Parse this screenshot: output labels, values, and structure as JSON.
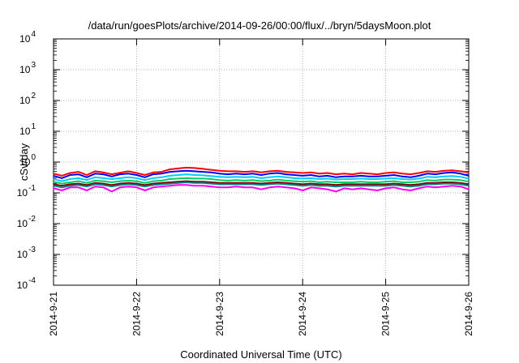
{
  "chart_data": {
    "type": "line",
    "title": "/data/run/goesPlots/archive/2014-09-26/00:00/flux/../bryn/5daysMoon.plot",
    "xlabel": "Coordinated Universal Time (UTC)",
    "ylabel": "cSv/day",
    "y_scale": "log",
    "ylim": [
      0.0001,
      10000
    ],
    "y_ticks": [
      {
        "base": "10",
        "exp": "-4"
      },
      {
        "base": "10",
        "exp": "-3"
      },
      {
        "base": "10",
        "exp": "-2"
      },
      {
        "base": "10",
        "exp": "-1"
      },
      {
        "base": "10",
        "exp": "0"
      },
      {
        "base": "10",
        "exp": "1"
      },
      {
        "base": "10",
        "exp": "2"
      },
      {
        "base": "10",
        "exp": "3"
      },
      {
        "base": "10",
        "exp": "4"
      }
    ],
    "xlim": [
      "2014-09-21",
      "2014-09-26"
    ],
    "x_ticks": [
      "2014-9-21",
      "2014-9-22",
      "2014-9-23",
      "2014-9-24",
      "2014-9-25",
      "2014-9-26"
    ],
    "grid": true,
    "series": [
      {
        "color": "#ff0000",
        "values": [
          0.42,
          0.36,
          0.44,
          0.48,
          0.38,
          0.5,
          0.46,
          0.4,
          0.45,
          0.5,
          0.44,
          0.38,
          0.46,
          0.48,
          0.58,
          0.62,
          0.66,
          0.64,
          0.6,
          0.56,
          0.52,
          0.5,
          0.5,
          0.48,
          0.5,
          0.46,
          0.5,
          0.52,
          0.48,
          0.46,
          0.44,
          0.46,
          0.42,
          0.44,
          0.4,
          0.42,
          0.4,
          0.44,
          0.42,
          0.4,
          0.44,
          0.46,
          0.42,
          0.4,
          0.44,
          0.5,
          0.48,
          0.52,
          0.54,
          0.5,
          0.46
        ]
      },
      {
        "color": "#0000ff",
        "values": [
          0.36,
          0.3,
          0.38,
          0.4,
          0.32,
          0.42,
          0.4,
          0.34,
          0.4,
          0.42,
          0.38,
          0.32,
          0.4,
          0.42,
          0.48,
          0.5,
          0.52,
          0.5,
          0.48,
          0.46,
          0.42,
          0.4,
          0.42,
          0.4,
          0.42,
          0.38,
          0.42,
          0.44,
          0.4,
          0.38,
          0.36,
          0.38,
          0.34,
          0.36,
          0.32,
          0.34,
          0.34,
          0.36,
          0.34,
          0.34,
          0.36,
          0.38,
          0.34,
          0.32,
          0.36,
          0.42,
          0.4,
          0.44,
          0.46,
          0.42,
          0.36
        ]
      },
      {
        "color": "#00ccff",
        "values": [
          0.28,
          0.24,
          0.28,
          0.3,
          0.26,
          0.32,
          0.3,
          0.28,
          0.3,
          0.32,
          0.3,
          0.26,
          0.3,
          0.32,
          0.36,
          0.38,
          0.4,
          0.38,
          0.37,
          0.35,
          0.33,
          0.32,
          0.33,
          0.32,
          0.33,
          0.3,
          0.32,
          0.34,
          0.32,
          0.3,
          0.29,
          0.3,
          0.28,
          0.29,
          0.27,
          0.28,
          0.28,
          0.29,
          0.28,
          0.28,
          0.29,
          0.3,
          0.28,
          0.27,
          0.29,
          0.33,
          0.32,
          0.34,
          0.35,
          0.33,
          0.29
        ]
      },
      {
        "color": "#00cc66",
        "values": [
          0.23,
          0.2,
          0.22,
          0.24,
          0.21,
          0.25,
          0.24,
          0.22,
          0.24,
          0.25,
          0.24,
          0.21,
          0.24,
          0.25,
          0.28,
          0.29,
          0.3,
          0.29,
          0.29,
          0.28,
          0.26,
          0.25,
          0.26,
          0.25,
          0.26,
          0.24,
          0.25,
          0.27,
          0.25,
          0.24,
          0.23,
          0.24,
          0.22,
          0.23,
          0.22,
          0.22,
          0.22,
          0.23,
          0.22,
          0.22,
          0.23,
          0.24,
          0.22,
          0.22,
          0.23,
          0.26,
          0.25,
          0.27,
          0.27,
          0.26,
          0.23
        ]
      },
      {
        "color": "#800000",
        "values": [
          0.19,
          0.17,
          0.19,
          0.2,
          0.18,
          0.21,
          0.2,
          0.18,
          0.2,
          0.21,
          0.2,
          0.18,
          0.2,
          0.21,
          0.22,
          0.23,
          0.24,
          0.23,
          0.23,
          0.22,
          0.21,
          0.21,
          0.21,
          0.21,
          0.21,
          0.2,
          0.21,
          0.22,
          0.21,
          0.2,
          0.19,
          0.2,
          0.19,
          0.19,
          0.18,
          0.19,
          0.19,
          0.19,
          0.19,
          0.19,
          0.19,
          0.2,
          0.19,
          0.18,
          0.19,
          0.21,
          0.21,
          0.22,
          0.22,
          0.21,
          0.19
        ]
      },
      {
        "color": "#008080",
        "values": [
          0.17,
          0.15,
          0.17,
          0.18,
          0.16,
          0.19,
          0.18,
          0.16,
          0.18,
          0.19,
          0.18,
          0.16,
          0.18,
          0.19,
          0.2,
          0.21,
          0.22,
          0.21,
          0.21,
          0.2,
          0.19,
          0.19,
          0.19,
          0.19,
          0.19,
          0.18,
          0.19,
          0.2,
          0.19,
          0.18,
          0.17,
          0.18,
          0.17,
          0.17,
          0.16,
          0.17,
          0.17,
          0.17,
          0.17,
          0.17,
          0.17,
          0.18,
          0.17,
          0.16,
          0.17,
          0.19,
          0.19,
          0.2,
          0.2,
          0.19,
          0.17
        ]
      },
      {
        "color": "#ff00ff",
        "values": [
          0.14,
          0.12,
          0.15,
          0.15,
          0.12,
          0.16,
          0.15,
          0.11,
          0.15,
          0.16,
          0.15,
          0.12,
          0.15,
          0.16,
          0.17,
          0.18,
          0.18,
          0.17,
          0.17,
          0.16,
          0.15,
          0.15,
          0.16,
          0.15,
          0.15,
          0.13,
          0.15,
          0.16,
          0.15,
          0.14,
          0.12,
          0.15,
          0.14,
          0.13,
          0.11,
          0.14,
          0.13,
          0.14,
          0.13,
          0.12,
          0.14,
          0.15,
          0.13,
          0.12,
          0.14,
          0.16,
          0.15,
          0.16,
          0.17,
          0.16,
          0.13
        ]
      }
    ]
  }
}
